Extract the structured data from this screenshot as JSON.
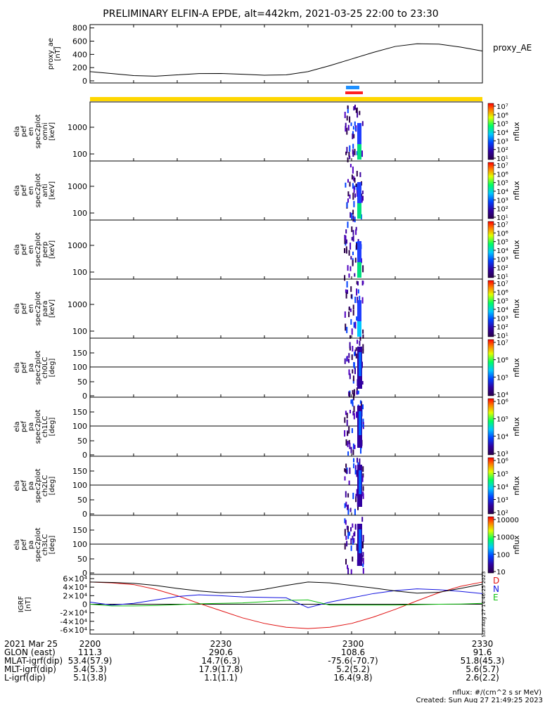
{
  "title": "PRELIMINARY ELFIN-A EPDE, alt=442km, 2021-03-25 22:00 to 23:30",
  "chart_data": [
    {
      "type": "line",
      "panel": "proxy_ae",
      "ylabel": "proxy_ae\n[nT]",
      "legend": "proxy_AE",
      "ylim": [
        0,
        850
      ],
      "yticks": [
        0,
        200,
        400,
        600,
        800
      ],
      "color": "#000000",
      "x": [
        0,
        5,
        10,
        15,
        20,
        25,
        30,
        35,
        40,
        45,
        50,
        55,
        60,
        65,
        70,
        75,
        80,
        85,
        90
      ],
      "values": [
        140,
        110,
        80,
        70,
        90,
        110,
        112,
        100,
        85,
        90,
        140,
        230,
        330,
        430,
        520,
        560,
        555,
        510,
        450
      ]
    },
    {
      "type": "heatmap",
      "panel": "en omni",
      "ylabel": "ela\npef\nen\nspec2plot\nomni\n[keV]",
      "yticks": [
        100,
        1000
      ],
      "zlabel": "nflux",
      "zticks": [
        "10¹",
        "10²",
        "10³",
        "10⁴",
        "10⁵",
        "10⁶",
        "10⁷"
      ]
    },
    {
      "type": "heatmap",
      "panel": "en anti",
      "ylabel": "ela\npef\nen\nspec2plot\nanti\n[keV]",
      "yticks": [
        100,
        1000
      ],
      "zlabel": "nflux",
      "zticks": [
        "10¹",
        "10²",
        "10³",
        "10⁴",
        "10⁵",
        "10⁶",
        "10⁷"
      ]
    },
    {
      "type": "heatmap",
      "panel": "en perp",
      "ylabel": "ela\npef\nen\nspec2plot\nperp\n[keV]",
      "yticks": [
        100,
        1000
      ],
      "zlabel": "nflux",
      "zticks": [
        "10¹",
        "10²",
        "10³",
        "10⁴",
        "10⁵",
        "10⁶",
        "10⁷"
      ]
    },
    {
      "type": "heatmap",
      "panel": "en para",
      "ylabel": "ela\npef\nen\nspec2plot\npara\n[keV]",
      "yticks": [
        100,
        1000
      ],
      "zlabel": "nflux",
      "zticks": [
        "10¹",
        "10²",
        "10³",
        "10⁴",
        "10⁵",
        "10⁶",
        "10⁷"
      ]
    },
    {
      "type": "heatmap",
      "panel": "pa ch0LC",
      "ylabel": "ela\npef\npa\nspec2plot\nch0LC\n[deg]",
      "yticks": [
        0,
        50,
        100,
        150
      ],
      "zlabel": "nflux",
      "zticks": [
        "10⁴",
        "10⁵",
        "10⁶",
        "10⁷"
      ]
    },
    {
      "type": "heatmap",
      "panel": "pa ch1LC",
      "ylabel": "ela\npef\npa\nspec2plot\nch1LC\n[deg]",
      "yticks": [
        0,
        50,
        100,
        150
      ],
      "zlabel": "nflux",
      "zticks": [
        "10³",
        "10⁴",
        "10⁵",
        "10⁶"
      ]
    },
    {
      "type": "heatmap",
      "panel": "pa ch2LC",
      "ylabel": "ela\npef\npa\nspec2plot\nch2LC\n[deg]",
      "yticks": [
        0,
        50,
        100,
        150
      ],
      "zlabel": "nflux",
      "zticks": [
        "10²",
        "10³",
        "10⁴",
        "10⁵",
        "10⁶"
      ]
    },
    {
      "type": "heatmap",
      "panel": "pa ch3LC",
      "ylabel": "ela\npef\npa\nspec2plot\nch3LC\n[deg]",
      "yticks": [
        0,
        50,
        100,
        150
      ],
      "zlabel": "nflux",
      "zticks": [
        "10",
        "100",
        "1000",
        "10000"
      ]
    },
    {
      "type": "line",
      "panel": "IGRF",
      "ylabel": "IGRF\n[nT]",
      "yticks": [
        "-6×10⁴",
        "-4×10⁴",
        "-2×10⁴",
        "0",
        "2×10⁴",
        "4×10⁴",
        "6×10⁴"
      ],
      "ylim": [
        -70000,
        70000
      ],
      "legend": [
        "D",
        "N",
        "E"
      ],
      "x": [
        0,
        5,
        10,
        15,
        20,
        25,
        30,
        35,
        40,
        45,
        50,
        55,
        60,
        65,
        70,
        75,
        80,
        85,
        90
      ],
      "series": [
        {
          "name": "D",
          "color": "#e01010",
          "values": [
            52000,
            50000,
            46000,
            35000,
            20000,
            2000,
            -15000,
            -32000,
            -45000,
            -54000,
            -57000,
            -54000,
            -45000,
            -30000,
            -12000,
            8000,
            27000,
            42000,
            52000
          ]
        },
        {
          "name": "N",
          "color": "#1010e0",
          "values": [
            5000,
            -2000,
            2000,
            10000,
            18000,
            22000,
            20000,
            17000,
            16000,
            15000,
            -8000,
            5000,
            15000,
            25000,
            32000,
            36000,
            34000,
            30000,
            25000
          ]
        },
        {
          "name": "E",
          "color": "#10c010",
          "values": [
            0,
            -4000,
            -4000,
            -3000,
            -1000,
            1000,
            2000,
            3000,
            6000,
            9000,
            10000,
            -2000,
            -2000,
            -2000,
            -2000,
            -1000,
            0,
            500,
            2000
          ]
        },
        {
          "name": "",
          "color": "#000000",
          "values": [
            52000,
            51000,
            49000,
            44000,
            37000,
            31000,
            27000,
            28000,
            35000,
            44000,
            52000,
            50000,
            44000,
            38000,
            31000,
            26000,
            28000,
            37000,
            47000
          ]
        }
      ]
    }
  ],
  "strips": {
    "note": "Sun Aug 27 14:46:25 2023"
  },
  "footer": {
    "rows": [
      {
        "label": "2021 Mar 25",
        "values": [
          "2200",
          "2230",
          "2300",
          "2330"
        ]
      },
      {
        "label": "GLON (east)",
        "values": [
          "111.3",
          "290.6",
          "108.6",
          "91.6"
        ]
      },
      {
        "label": "MLAT-igrf(dip)",
        "values": [
          "53.4(57.9)",
          "14.7(6.3)",
          "-75.6(-70.7)",
          "51.8(45.3)"
        ]
      },
      {
        "label": "MLT-igrf(dip)",
        "values": [
          "5.4(5.3)",
          "17.9(17.8)",
          "5.2(5.2)",
          "5.6(5.7)"
        ]
      },
      {
        "label": "L-igrf(dip)",
        "values": [
          "5.1(3.8)",
          "1.1(1.1)",
          "16.4(9.8)",
          "2.6(2.2)"
        ]
      }
    ],
    "units_note": "nflux: #/(cm^2 s sr MeV)",
    "created": "Created: Sun Aug 27 21:49:25 2023"
  }
}
